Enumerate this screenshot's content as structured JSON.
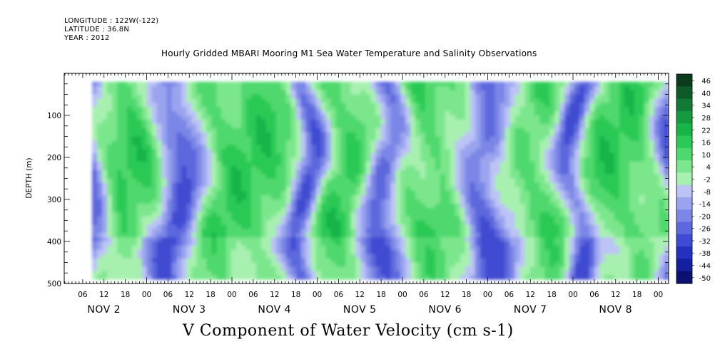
{
  "header": {
    "longitude": "LONGITUDE : 122W(-122)",
    "latitude": "LATITUDE : 36.8N",
    "year": "YEAR : 2012"
  },
  "chart_data": {
    "type": "heatmap",
    "title": "Hourly Gridded MBARI Mooring M1 Sea Water Temperature and Salinity Observations",
    "xlabel": "V Component of Water Velocity (cm s-1)",
    "ylabel": "DEPTH (m)",
    "ylim": [
      500,
      0
    ],
    "yticks": [
      100,
      200,
      300,
      400,
      500
    ],
    "y_data_range": [
      20,
      485
    ],
    "x_hour_ticks": [
      "06",
      "12",
      "18",
      "00",
      "06",
      "12",
      "18",
      "00",
      "06",
      "12",
      "18",
      "00",
      "06",
      "12",
      "18",
      "00",
      "06",
      "12",
      "18",
      "00",
      "06",
      "12",
      "18",
      "00",
      "06",
      "12",
      "18",
      "00"
    ],
    "x_day_labels": [
      "NOV  2",
      "NOV  3",
      "NOV  4",
      "NOV  5",
      "NOV  6",
      "NOV  7",
      "NOV  8"
    ],
    "colorbar": {
      "levels": [
        -50,
        -44,
        -38,
        -32,
        -26,
        -20,
        -14,
        -8,
        -2,
        4,
        10,
        16,
        22,
        28,
        34,
        40,
        46
      ],
      "labels": [
        "46",
        "40",
        "34",
        "28",
        "22",
        "16",
        "10",
        "4",
        "-2",
        "-8",
        "-14",
        "-20",
        "-26",
        "-32",
        "-38",
        "-44",
        "-50"
      ],
      "colors_high_to_low": [
        "#0b3a1c",
        "#0f5a2a",
        "#127a36",
        "#159a40",
        "#19b448",
        "#2bc957",
        "#4fd86d",
        "#7be68d",
        "#a8f0b0",
        "#bcc3f5",
        "#9aa4ee",
        "#7c86e6",
        "#5d68dd",
        "#3f4bd2",
        "#2530c0",
        "#141fa0",
        "#0a1170"
      ]
    },
    "data_extent": {
      "x_start_hour_offset": -4,
      "x_end_hour_offset": 170
    },
    "field_summary": "velocity field alternating between positive (green, up to about +20 cm/s) and negative (blue/purple, down to about -25 cm/s) vertical bands from NOV 2 to NOV 8"
  }
}
